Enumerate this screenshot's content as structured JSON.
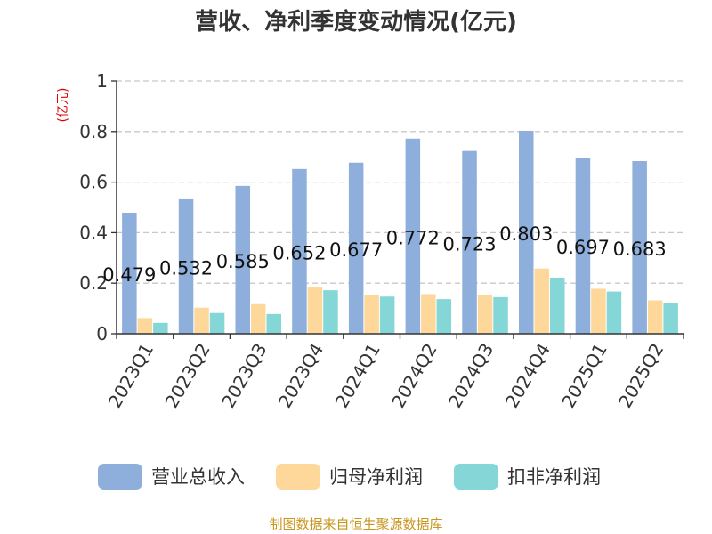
{
  "chart_data": {
    "type": "bar",
    "title": "营收、净利季度变动情况(亿元)",
    "unit_label": "(亿元)",
    "categories": [
      "2023Q1",
      "2023Q2",
      "2023Q3",
      "2023Q4",
      "2024Q1",
      "2024Q2",
      "2024Q3",
      "2024Q4",
      "2025Q1",
      "2025Q2"
    ],
    "series": [
      {
        "name": "营业总收入",
        "color": "#8eaedb",
        "values": [
          0.479,
          0.532,
          0.585,
          0.652,
          0.677,
          0.772,
          0.723,
          0.803,
          0.697,
          0.683
        ]
      },
      {
        "name": "归母净利润",
        "color": "#fdd89a",
        "values": [
          0.062,
          0.103,
          0.117,
          0.183,
          0.153,
          0.157,
          0.152,
          0.258,
          0.178,
          0.132
        ]
      },
      {
        "name": "扣非净利润",
        "color": "#85d6d6",
        "values": [
          0.043,
          0.082,
          0.078,
          0.172,
          0.147,
          0.137,
          0.145,
          0.222,
          0.167,
          0.122
        ]
      }
    ],
    "data_labels": [
      "0.479",
      "0.532",
      "0.585",
      "0.652",
      "0.677",
      "0.772",
      "0.723",
      "0.803",
      "0.697",
      "0.683"
    ],
    "yticks": [
      "0",
      "0.2",
      "0.4",
      "0.6",
      "0.8",
      "1"
    ],
    "ylim": [
      0,
      1
    ],
    "grid": true,
    "legend_position": "bottom"
  },
  "source": "制图数据来自恒生聚源数据库"
}
